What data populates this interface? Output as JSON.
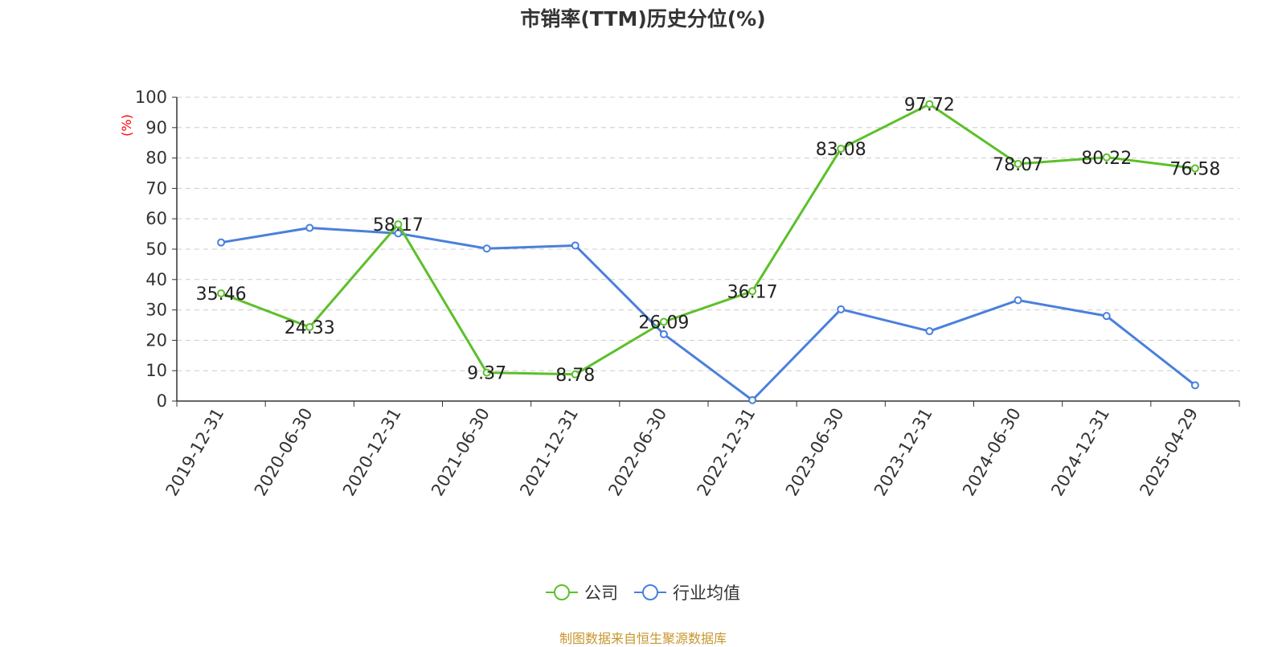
{
  "title": "市销率(TTM)历史分位(%)",
  "footer": "制图数据来自恒生聚源数据库",
  "colors": {
    "company": "#5cc02a",
    "industry": "#4a80dc",
    "ylabel": "#ff0000",
    "grid": "#cccccc",
    "axis": "#333333"
  },
  "chart_data": {
    "type": "line",
    "title": "市销率(TTM)历史分位(%)",
    "ylabel": "(%)",
    "ylim": [
      0,
      100
    ],
    "yticks": [
      0,
      10,
      20,
      30,
      40,
      50,
      60,
      70,
      80,
      90,
      100
    ],
    "grid": true,
    "legend_position": "bottom-center",
    "categories": [
      "2019-12-31",
      "2020-06-30",
      "2020-12-31",
      "2021-06-30",
      "2021-12-31",
      "2022-06-30",
      "2022-12-31",
      "2023-06-30",
      "2023-12-31",
      "2024-06-30",
      "2024-12-31",
      "2025-04-29"
    ],
    "series": [
      {
        "name": "公司",
        "values": [
          35.46,
          24.33,
          58.17,
          9.37,
          8.78,
          26.09,
          36.17,
          83.08,
          97.72,
          78.07,
          80.22,
          76.58
        ],
        "labels": true
      },
      {
        "name": "行业均值",
        "values": [
          52.2,
          57.0,
          55.2,
          50.2,
          51.2,
          22.0,
          0.3,
          30.2,
          23.0,
          33.2,
          28.0,
          5.2
        ],
        "labels": false
      }
    ]
  }
}
